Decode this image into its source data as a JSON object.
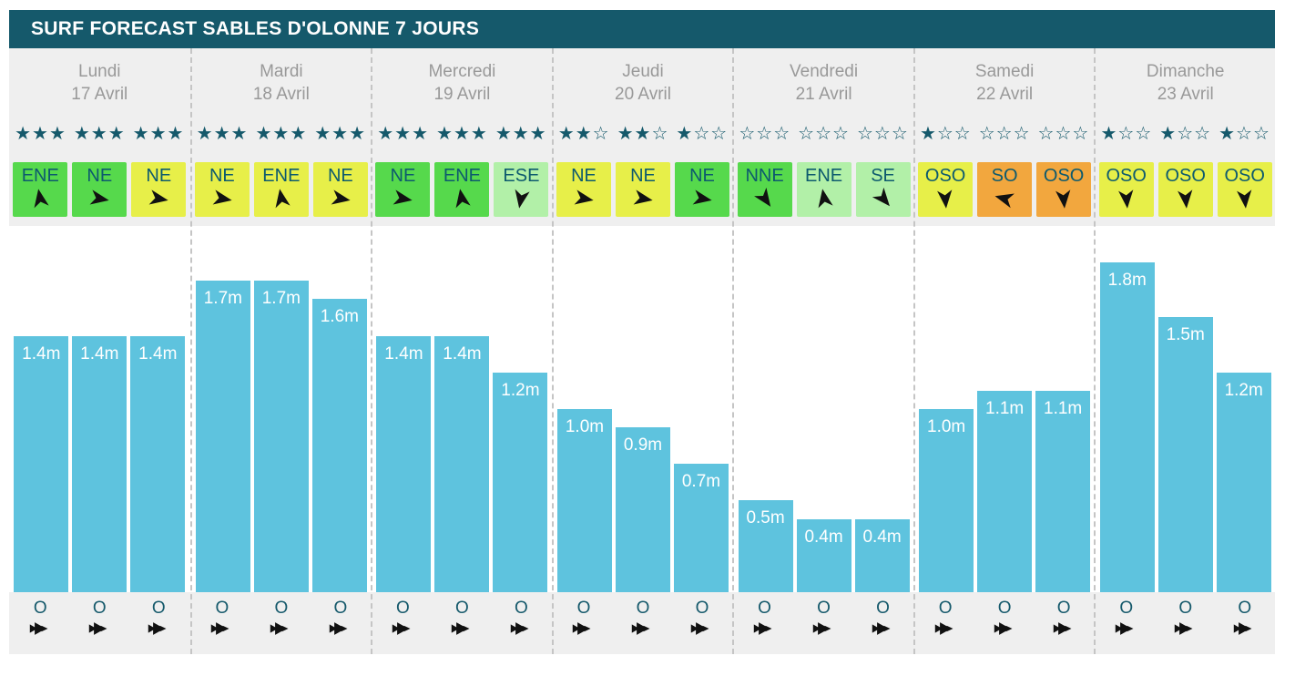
{
  "title": "SURF FORECAST SABLES D'OLONNE 7 JOURS",
  "colors": {
    "header_bg": "#15596b",
    "panel_bg": "#efefef",
    "chart_bg": "#ffffff",
    "bar": "#5ec3de",
    "star": "#15596b",
    "day_text": "#999999",
    "badge_text": "#0d5a6e",
    "wave_label": "#ffffff",
    "swell_text": "#15596b",
    "arrow": "#111111",
    "separator": "#c5c5c5",
    "badge_green": "#56d94c",
    "badge_yellow": "#e7ef49",
    "badge_palegreen": "#b2f0a8",
    "badge_orange": "#f2a73e"
  },
  "stars_max_per_slot": 3,
  "days": [
    {
      "name": "Lundi",
      "date": "17 Avril",
      "ratings": [
        3,
        3,
        3
      ],
      "winds": [
        {
          "dir": "ENE",
          "color": "green",
          "deg": -10
        },
        {
          "dir": "NE",
          "color": "green",
          "deg": 100
        },
        {
          "dir": "NE",
          "color": "yellow",
          "deg": 100
        }
      ],
      "waves": [
        1.4,
        1.4,
        1.4
      ],
      "swell": [
        "O",
        "O",
        "O"
      ]
    },
    {
      "name": "Mardi",
      "date": "18 Avril",
      "ratings": [
        3,
        3,
        3
      ],
      "winds": [
        {
          "dir": "NE",
          "color": "yellow",
          "deg": 100
        },
        {
          "dir": "ENE",
          "color": "yellow",
          "deg": -10
        },
        {
          "dir": "NE",
          "color": "yellow",
          "deg": 100
        }
      ],
      "waves": [
        1.7,
        1.7,
        1.6
      ],
      "swell": [
        "O",
        "O",
        "O"
      ]
    },
    {
      "name": "Mercredi",
      "date": "19 Avril",
      "ratings": [
        3,
        3,
        3
      ],
      "winds": [
        {
          "dir": "NE",
          "color": "green",
          "deg": 100
        },
        {
          "dir": "ENE",
          "color": "green",
          "deg": -10
        },
        {
          "dir": "ESE",
          "color": "palegreen",
          "deg": 190
        }
      ],
      "waves": [
        1.4,
        1.4,
        1.2
      ],
      "swell": [
        "O",
        "O",
        "O"
      ]
    },
    {
      "name": "Jeudi",
      "date": "20 Avril",
      "ratings": [
        2,
        2,
        1
      ],
      "winds": [
        {
          "dir": "NE",
          "color": "yellow",
          "deg": 100
        },
        {
          "dir": "NE",
          "color": "yellow",
          "deg": 100
        },
        {
          "dir": "NE",
          "color": "green",
          "deg": 100
        }
      ],
      "waves": [
        1.0,
        0.9,
        0.7
      ],
      "swell": [
        "O",
        "O",
        "O"
      ]
    },
    {
      "name": "Vendredi",
      "date": "21 Avril",
      "ratings": [
        0,
        0,
        0
      ],
      "winds": [
        {
          "dir": "NNE",
          "color": "green",
          "deg": 145
        },
        {
          "dir": "ENE",
          "color": "palegreen",
          "deg": -10
        },
        {
          "dir": "SE",
          "color": "palegreen",
          "deg": 140
        }
      ],
      "waves": [
        0.5,
        0.4,
        0.4
      ],
      "swell": [
        "O",
        "O",
        "O"
      ]
    },
    {
      "name": "Samedi",
      "date": "22 Avril",
      "ratings": [
        1,
        0,
        0
      ],
      "winds": [
        {
          "dir": "OSO",
          "color": "yellow",
          "deg": 175
        },
        {
          "dir": "SO",
          "color": "orange",
          "deg": 285
        },
        {
          "dir": "OSO",
          "color": "orange",
          "deg": 175
        }
      ],
      "waves": [
        1.0,
        1.1,
        1.1
      ],
      "swell": [
        "O",
        "O",
        "O"
      ]
    },
    {
      "name": "Dimanche",
      "date": "23 Avril",
      "ratings": [
        1,
        1,
        1
      ],
      "winds": [
        {
          "dir": "OSO",
          "color": "yellow",
          "deg": 175
        },
        {
          "dir": "OSO",
          "color": "yellow",
          "deg": 175
        },
        {
          "dir": "OSO",
          "color": "yellow",
          "deg": 175
        }
      ],
      "waves": [
        1.8,
        1.5,
        1.2
      ],
      "swell": [
        "O",
        "O",
        "O"
      ]
    }
  ],
  "wave_unit": "m",
  "chart_data": {
    "type": "bar",
    "title": "SURF FORECAST SABLES D'OLONNE 7 JOURS",
    "xlabel": "",
    "ylabel": "",
    "unit": "m",
    "ylim": [
      0,
      2
    ],
    "grid": false,
    "legend": false,
    "categories": [
      "Lundi 17 Avril",
      "Mardi 18 Avril",
      "Mercredi 19 Avril",
      "Jeudi 20 Avril",
      "Vendredi 21 Avril",
      "Samedi 22 Avril",
      "Dimanche 23 Avril"
    ],
    "values_per_day": [
      [
        1.4,
        1.4,
        1.4
      ],
      [
        1.7,
        1.7,
        1.6
      ],
      [
        1.4,
        1.4,
        1.2
      ],
      [
        1.0,
        0.9,
        0.7
      ],
      [
        0.5,
        0.4,
        0.4
      ],
      [
        1.0,
        1.1,
        1.1
      ],
      [
        1.8,
        1.5,
        1.2
      ]
    ],
    "values": [
      1.4,
      1.4,
      1.4,
      1.7,
      1.7,
      1.6,
      1.4,
      1.4,
      1.2,
      1.0,
      0.9,
      0.7,
      0.5,
      0.4,
      0.4,
      1.0,
      1.1,
      1.1,
      1.8,
      1.5,
      1.2
    ],
    "bar_color": "#5ec3de",
    "star_ratings_per_day": [
      [
        3,
        3,
        3
      ],
      [
        3,
        3,
        3
      ],
      [
        3,
        3,
        3
      ],
      [
        2,
        2,
        1
      ],
      [
        0,
        0,
        0
      ],
      [
        1,
        0,
        0
      ],
      [
        1,
        1,
        1
      ]
    ],
    "wind_dirs_per_day": [
      [
        "ENE",
        "NE",
        "NE"
      ],
      [
        "NE",
        "ENE",
        "NE"
      ],
      [
        "NE",
        "ENE",
        "ESE"
      ],
      [
        "NE",
        "NE",
        "NE"
      ],
      [
        "NNE",
        "ENE",
        "SE"
      ],
      [
        "OSO",
        "SO",
        "OSO"
      ],
      [
        "OSO",
        "OSO",
        "OSO"
      ]
    ],
    "swell_dirs_per_day": [
      [
        "O",
        "O",
        "O"
      ],
      [
        "O",
        "O",
        "O"
      ],
      [
        "O",
        "O",
        "O"
      ],
      [
        "O",
        "O",
        "O"
      ],
      [
        "O",
        "O",
        "O"
      ],
      [
        "O",
        "O",
        "O"
      ],
      [
        "O",
        "O",
        "O"
      ]
    ]
  }
}
